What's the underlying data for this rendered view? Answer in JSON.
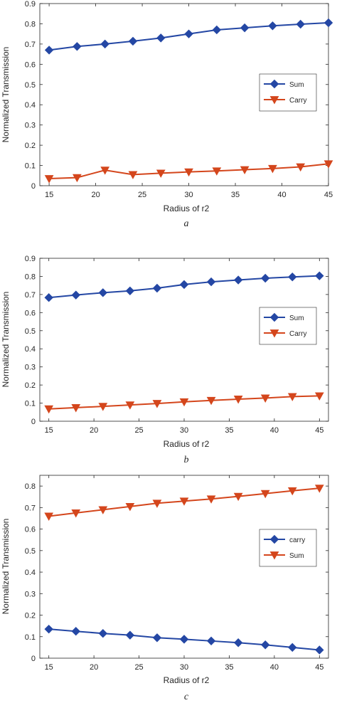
{
  "chart_data": [
    {
      "type": "line",
      "panel_label": "a",
      "xlabel": "Radius of r2",
      "ylabel": "Normalized Transmission",
      "xlim": [
        14,
        45
      ],
      "ylim": [
        0,
        0.9
      ],
      "xticks": [
        "15",
        "20",
        "25",
        "30",
        "35",
        "40",
        "45"
      ],
      "yticks": [
        "0",
        "0.1",
        "0.2",
        "0.3",
        "0.4",
        "0.5",
        "0.6",
        "0.7",
        "0.8",
        "0.9"
      ],
      "x": [
        15,
        18,
        21,
        24,
        27,
        30,
        33,
        36,
        39,
        42,
        45
      ],
      "legend_position": "right",
      "series": [
        {
          "name": "Sum",
          "color": "#2447a4",
          "marker": "diamond",
          "values": [
            0.67,
            0.688,
            0.7,
            0.714,
            0.73,
            0.75,
            0.77,
            0.78,
            0.79,
            0.798,
            0.805
          ]
        },
        {
          "name": "Carry",
          "color": "#d4461c",
          "marker": "triangle-down",
          "values": [
            0.035,
            0.04,
            0.077,
            0.055,
            0.062,
            0.068,
            0.073,
            0.079,
            0.085,
            0.093,
            0.108
          ]
        }
      ]
    },
    {
      "type": "line",
      "panel_label": "b",
      "xlabel": "Radius of r2",
      "ylabel": "Normalized Transmission",
      "xlim": [
        14,
        46
      ],
      "ylim": [
        0,
        0.9
      ],
      "xticks": [
        "15",
        "20",
        "25",
        "30",
        "35",
        "40",
        "45"
      ],
      "yticks": [
        "0",
        "0.1",
        "0.2",
        "0.3",
        "0.4",
        "0.5",
        "0.6",
        "0.7",
        "0.8",
        "0.9"
      ],
      "x": [
        15,
        18,
        21,
        24,
        27,
        30,
        33,
        36,
        39,
        42,
        45
      ],
      "legend_position": "right",
      "series": [
        {
          "name": "Sum",
          "color": "#2447a4",
          "marker": "diamond",
          "values": [
            0.683,
            0.697,
            0.71,
            0.72,
            0.735,
            0.755,
            0.77,
            0.78,
            0.79,
            0.797,
            0.803
          ]
        },
        {
          "name": "Carry",
          "color": "#d4461c",
          "marker": "triangle-down",
          "values": [
            0.068,
            0.075,
            0.082,
            0.09,
            0.098,
            0.107,
            0.115,
            0.122,
            0.128,
            0.136,
            0.14
          ]
        }
      ]
    },
    {
      "type": "line",
      "panel_label": "c",
      "xlabel": "Radius of r2",
      "ylabel": "Normalized Transmission",
      "xlim": [
        14,
        46
      ],
      "ylim": [
        0,
        0.85
      ],
      "xticks": [
        "15",
        "20",
        "25",
        "30",
        "35",
        "40",
        "45"
      ],
      "yticks": [
        "0",
        "0.1",
        "0.2",
        "0.3",
        "0.4",
        "0.5",
        "0.6",
        "0.7",
        "0.8"
      ],
      "x": [
        15,
        18,
        21,
        24,
        27,
        30,
        33,
        36,
        39,
        42,
        45
      ],
      "legend_position": "right",
      "series": [
        {
          "name": "carry",
          "color": "#2447a4",
          "marker": "diamond",
          "values": [
            0.135,
            0.125,
            0.115,
            0.107,
            0.095,
            0.088,
            0.08,
            0.072,
            0.062,
            0.05,
            0.038
          ]
        },
        {
          "name": "Sum",
          "color": "#d4461c",
          "marker": "triangle-down",
          "values": [
            0.66,
            0.675,
            0.69,
            0.705,
            0.72,
            0.73,
            0.74,
            0.752,
            0.765,
            0.778,
            0.79
          ]
        }
      ]
    }
  ]
}
